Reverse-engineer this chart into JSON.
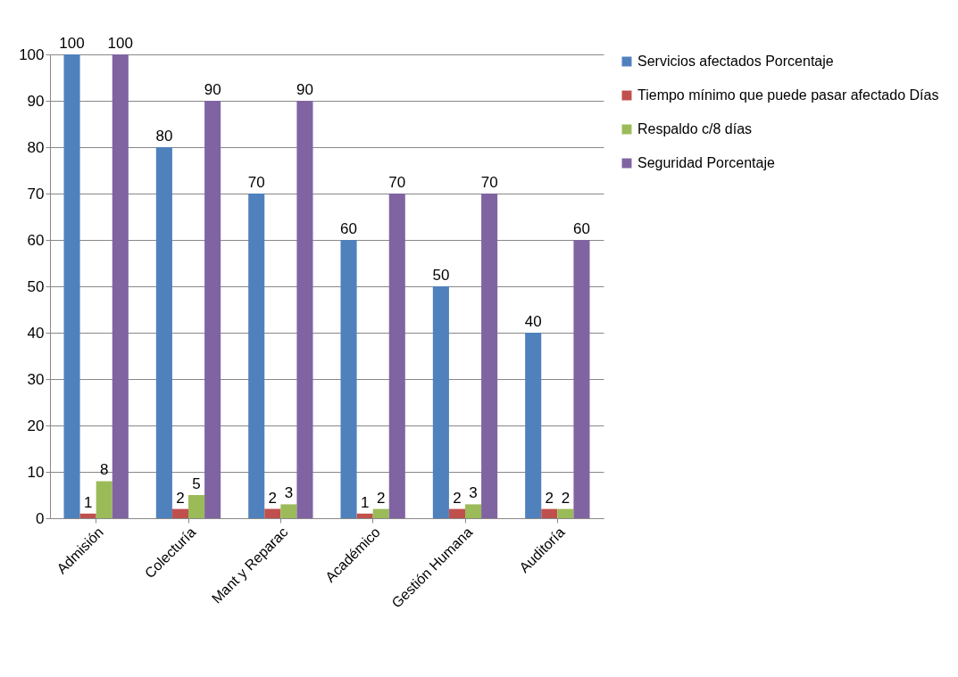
{
  "chart_data": {
    "type": "bar",
    "categories": [
      "Admisión",
      "Colecturía",
      "Mant y Reparac",
      "Académico",
      "Gestión Humana",
      "Auditoría"
    ],
    "series": [
      {
        "name": "Servicios afectados Porcentaje",
        "color": "#4f81bd",
        "values": [
          100,
          80,
          70,
          60,
          50,
          40
        ]
      },
      {
        "name": "Tiempo mínimo que puede pasar afectado Días",
        "color": "#c0504d",
        "values": [
          1,
          2,
          2,
          1,
          2,
          2
        ]
      },
      {
        "name": "Respaldo  c/8 días",
        "color": "#9bbb59",
        "values": [
          8,
          5,
          3,
          2,
          3,
          2
        ]
      },
      {
        "name": "Seguridad Porcentaje",
        "color": "#8064a2",
        "values": [
          100,
          90,
          90,
          70,
          70,
          60
        ]
      }
    ],
    "ylim": [
      0,
      100
    ],
    "yticks": [
      0,
      10,
      20,
      30,
      40,
      50,
      60,
      70,
      80,
      90,
      100
    ],
    "grid": "y",
    "legend": "right",
    "data_labels": true
  }
}
